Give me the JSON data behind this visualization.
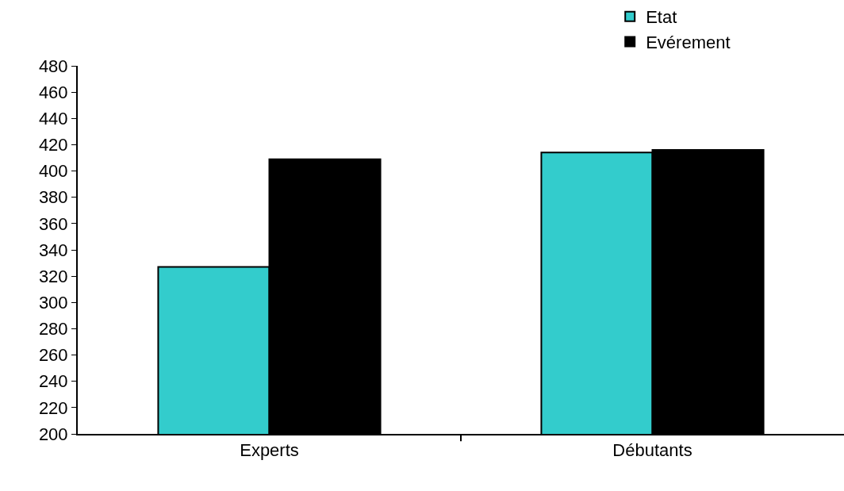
{
  "chart_data": {
    "type": "bar",
    "categories": [
      "Experts",
      "Débutants"
    ],
    "series": [
      {
        "name": "Etat",
        "color": "#33cccc",
        "values": [
          327,
          414
        ]
      },
      {
        "name": "Evérement",
        "color": "#000000",
        "values": [
          409,
          416
        ]
      }
    ],
    "ylim": [
      200,
      480
    ],
    "yticks": [
      200,
      220,
      240,
      260,
      280,
      300,
      320,
      340,
      360,
      380,
      400,
      420,
      440,
      460,
      480
    ],
    "grid": false,
    "legend": "top right"
  }
}
